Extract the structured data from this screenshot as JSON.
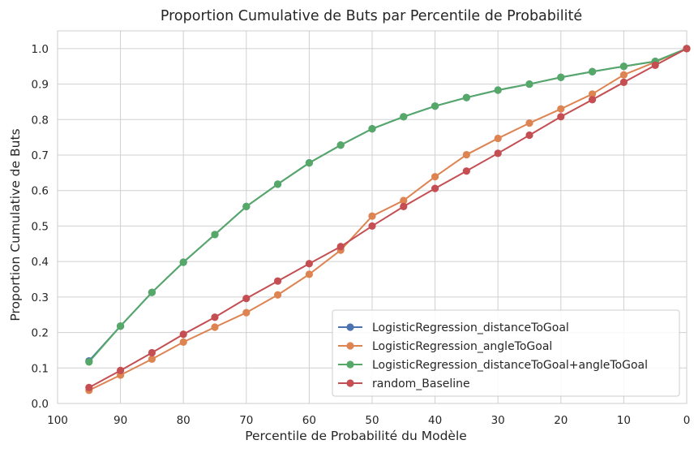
{
  "chart_data": {
    "type": "line",
    "title": "Proportion Cumulative de Buts par Percentile de Probabilité",
    "xlabel": "Percentile de Probabilité du Modèle",
    "ylabel": "Proportion Cumulative de Buts",
    "x_inverted": true,
    "xlim": [
      100,
      0
    ],
    "ylim": [
      0,
      1.05
    ],
    "xticks": [
      100,
      90,
      80,
      70,
      60,
      50,
      40,
      30,
      20,
      10,
      0
    ],
    "yticks": [
      0.0,
      0.1,
      0.2,
      0.3,
      0.4,
      0.5,
      0.6,
      0.7,
      0.8,
      0.9,
      1.0
    ],
    "xtick_labels": [
      "100",
      "90",
      "80",
      "70",
      "60",
      "50",
      "40",
      "30",
      "20",
      "10",
      "0"
    ],
    "ytick_labels": [
      "0.0",
      "0.1",
      "0.2",
      "0.3",
      "0.4",
      "0.5",
      "0.6",
      "0.7",
      "0.8",
      "0.9",
      "1.0"
    ],
    "grid": true,
    "legend_position": "lower-right",
    "x": [
      95,
      90,
      85,
      80,
      75,
      70,
      65,
      60,
      55,
      50,
      45,
      40,
      35,
      30,
      25,
      20,
      15,
      10,
      5,
      0
    ],
    "series": [
      {
        "name": "LogisticRegression_distanceToGoal",
        "color": "#4c72b0",
        "values": [
          0.12,
          0.218,
          0.313,
          0.398,
          0.476,
          0.555,
          0.618,
          0.678,
          0.728,
          0.774,
          0.808,
          0.838,
          0.862,
          0.883,
          0.9,
          0.919,
          0.935,
          0.95,
          0.964,
          1.0
        ]
      },
      {
        "name": "LogisticRegression_angleToGoal",
        "color": "#dd8452",
        "values": [
          0.037,
          0.08,
          0.125,
          0.173,
          0.215,
          0.256,
          0.306,
          0.364,
          0.432,
          0.528,
          0.572,
          0.639,
          0.701,
          0.747,
          0.79,
          0.83,
          0.872,
          0.926,
          0.962,
          1.0
        ]
      },
      {
        "name": "LogisticRegression_distanceToGoal+angleToGoal",
        "color": "#55a868",
        "values": [
          0.117,
          0.218,
          0.313,
          0.398,
          0.476,
          0.555,
          0.618,
          0.678,
          0.728,
          0.774,
          0.808,
          0.838,
          0.862,
          0.883,
          0.9,
          0.919,
          0.935,
          0.95,
          0.964,
          1.0
        ]
      },
      {
        "name": "random_Baseline",
        "color": "#c44e52",
        "values": [
          0.045,
          0.093,
          0.143,
          0.195,
          0.243,
          0.296,
          0.345,
          0.394,
          0.442,
          0.5,
          0.555,
          0.606,
          0.655,
          0.705,
          0.756,
          0.808,
          0.856,
          0.905,
          0.953,
          1.0
        ]
      }
    ]
  }
}
